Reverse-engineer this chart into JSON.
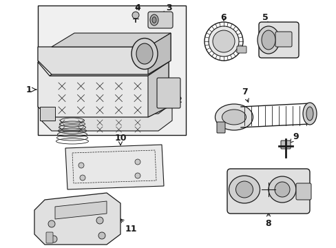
{
  "figsize": [
    4.89,
    3.6
  ],
  "dpi": 100,
  "bg": "#ffffff",
  "lc": "#1a1a1a",
  "lc_light": "#666666",
  "fill_light": "#e8e8e8",
  "fill_mid": "#d0d0d0",
  "fill_dot": "#f5f5f5",
  "box_bg": "#ebebeb"
}
